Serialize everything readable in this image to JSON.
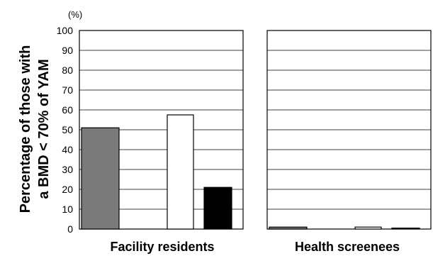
{
  "chart_data": {
    "type": "bar",
    "ylim": [
      0,
      100
    ],
    "yticks": [
      0,
      10,
      20,
      30,
      40,
      50,
      60,
      70,
      80,
      90,
      100
    ],
    "y_unit": "(%)",
    "ylabel_line1": "Percentage of those with",
    "ylabel_line2": "a BMD < 70% of YAM",
    "grid": true,
    "bar_colors": [
      "#7a7a7a",
      "#ffffff",
      "#000000"
    ],
    "panels": [
      {
        "label": "Facility residents",
        "values": [
          51,
          57.5,
          21
        ]
      },
      {
        "label": "Health screenees",
        "values": [
          1,
          1,
          0.5
        ]
      }
    ]
  }
}
